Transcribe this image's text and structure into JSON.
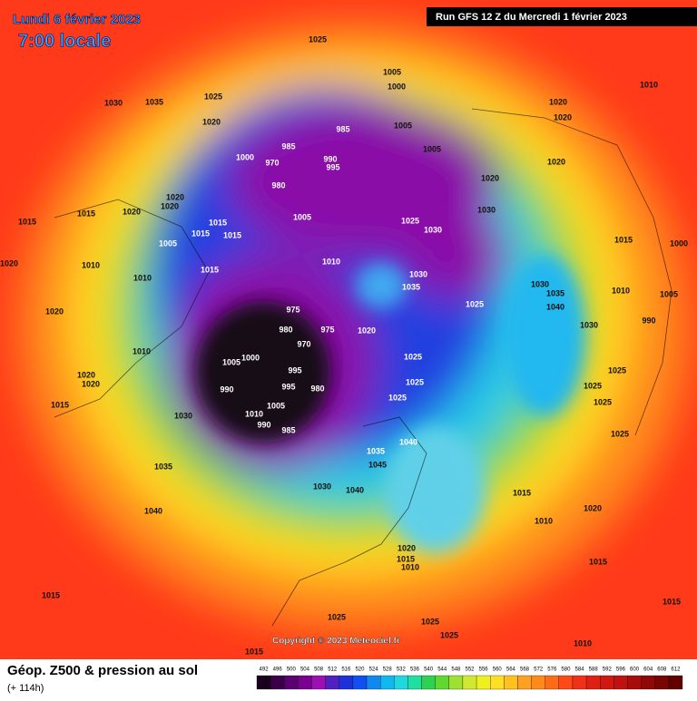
{
  "header": {
    "date": "Lundi 6 février 2023",
    "time": "7:00 locale",
    "run": "Run GFS 12 Z du Mercredi 1 février 2023"
  },
  "footer": {
    "title": "Géop. Z500 & pression au sol",
    "lead": "(+ 114h)",
    "copyright": "Copyright © 2023 Meteociel.fr"
  },
  "colorbar": {
    "ticks": [
      492,
      496,
      500,
      504,
      508,
      512,
      516,
      520,
      524,
      528,
      532,
      536,
      540,
      544,
      548,
      552,
      556,
      560,
      564,
      568,
      572,
      576,
      580,
      584,
      588,
      592,
      596,
      600,
      604,
      608,
      612
    ],
    "colors": [
      "#1a001e",
      "#3a0048",
      "#5a0070",
      "#7a0090",
      "#9a10b0",
      "#5020c0",
      "#2030d8",
      "#1050f0",
      "#1088f0",
      "#10b8f0",
      "#20d8e0",
      "#20e0a0",
      "#30d050",
      "#60d830",
      "#a0e030",
      "#d0e830",
      "#f0f020",
      "#ffe020",
      "#ffc020",
      "#ffa020",
      "#ff8a18",
      "#ff6a18",
      "#ff4a18",
      "#f03018",
      "#e02010",
      "#d01810",
      "#c01010",
      "#a80c0c",
      "#900808",
      "#780404",
      "#600000"
    ]
  },
  "isobar_labels": [
    1025,
    1005,
    1000,
    1010,
    1030,
    1035,
    1025,
    1020,
    1020,
    1020,
    985,
    1005,
    985,
    1005,
    1000,
    970,
    990,
    995,
    980,
    1020,
    1020,
    1020,
    1020,
    1030,
    1015,
    1015,
    1020,
    1005,
    1025,
    1015,
    1015,
    1015,
    1030,
    1015,
    1000,
    1005,
    1020,
    1010,
    1015,
    1010,
    1030,
    1010,
    1035,
    1030,
    1035,
    1010,
    1005,
    975,
    1025,
    1040,
    1020,
    990,
    980,
    975,
    1020,
    1030,
    970,
    1010,
    1000,
    1025,
    1005,
    995,
    1025,
    1020,
    1020,
    990,
    995,
    1025,
    980,
    1025,
    1025,
    1025,
    1015,
    1005,
    1010,
    1030,
    990,
    985,
    1025,
    1040,
    1035,
    1045,
    1035,
    1030,
    1040,
    1015,
    1040,
    1020,
    1010,
    1020,
    1015,
    1010,
    1015,
    1015,
    1025,
    1025,
    1015,
    1025,
    1010,
    1015
  ]
}
